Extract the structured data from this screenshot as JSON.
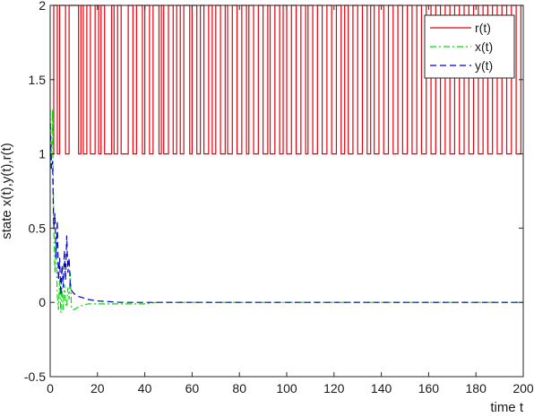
{
  "chart_data": {
    "type": "line",
    "xlabel": "time t",
    "ylabel": "state x(t),y(t),r(t)",
    "xlim": [
      0,
      200
    ],
    "ylim": [
      -0.5,
      2
    ],
    "x_ticks": [
      "0",
      "20",
      "40",
      "60",
      "80",
      "100",
      "120",
      "140",
      "160",
      "180",
      "200"
    ],
    "y_ticks": [
      "-0.5",
      "0",
      "0.5",
      "1",
      "1.5",
      "2"
    ],
    "legend_position": "top-right",
    "series": [
      {
        "name": "r(t)",
        "color": "#e8000b",
        "dash": "solid",
        "kind": "step",
        "x": [
          0,
          1.5,
          3,
          4,
          6.5,
          8,
          12,
          13,
          14,
          15.5,
          17,
          19,
          20.5,
          21.5,
          23,
          26,
          27,
          28.5,
          30,
          33,
          35,
          36.5,
          39,
          40,
          42,
          43.5,
          46,
          47,
          48,
          50,
          52,
          53.5,
          55,
          56.5,
          59,
          60,
          62,
          63.5,
          65,
          67,
          68.5,
          70,
          72,
          74,
          75,
          77,
          79,
          81,
          83,
          84,
          86,
          88,
          90,
          92,
          93,
          95,
          97,
          98.5,
          100,
          102,
          104,
          106,
          108,
          109,
          111,
          113,
          115,
          117,
          119,
          121,
          123,
          124.5,
          126,
          128,
          130,
          132,
          134,
          135.5,
          137,
          139,
          141,
          143,
          145,
          147,
          149,
          151,
          153,
          155,
          157,
          159,
          161,
          163,
          165,
          167,
          169,
          171,
          173,
          175,
          177,
          179,
          181,
          183,
          185,
          187,
          189,
          191,
          193,
          195,
          197,
          199,
          200
        ],
        "y": [
          1,
          2,
          1,
          2,
          1,
          2,
          1,
          2,
          1,
          2,
          1,
          2,
          1,
          2,
          1,
          2,
          1,
          2,
          1,
          2,
          1,
          2,
          1,
          2,
          1,
          2,
          1,
          2,
          1,
          2,
          1,
          2,
          1,
          2,
          1,
          2,
          1,
          2,
          1,
          2,
          1,
          2,
          1,
          2,
          1,
          2,
          1,
          2,
          1,
          2,
          1,
          2,
          1,
          2,
          1,
          2,
          1,
          2,
          1,
          2,
          1,
          2,
          1,
          2,
          1,
          2,
          1,
          2,
          1,
          2,
          1,
          2,
          1,
          2,
          1,
          2,
          1,
          2,
          1,
          2,
          1,
          2,
          1,
          2,
          1,
          2,
          1,
          2,
          1,
          2,
          1,
          2,
          1,
          2,
          1,
          2,
          1,
          2,
          1,
          2,
          1,
          2,
          1,
          2,
          1,
          2,
          1,
          2,
          1,
          2,
          2
        ]
      },
      {
        "name": "x(t)",
        "color": "#00e000",
        "dash": "dashdot",
        "kind": "line",
        "x": [
          0,
          0.5,
          1,
          1.5,
          2,
          2.5,
          3,
          3.5,
          4,
          4.5,
          5,
          5.5,
          6,
          6.5,
          7,
          7.5,
          8,
          8.5,
          9,
          10,
          12,
          14,
          16,
          20,
          30,
          40,
          45,
          60,
          80,
          100,
          140,
          200
        ],
        "y": [
          1.3,
          0.9,
          1.3,
          0.5,
          0.2,
          0.4,
          0.05,
          -0.05,
          0.15,
          -0.07,
          0.1,
          -0.05,
          0.12,
          0.0,
          -0.03,
          0.1,
          0.02,
          0.2,
          -0.04,
          -0.05,
          -0.03,
          -0.02,
          -0.01,
          -0.01,
          -0.01,
          -0.01,
          0.0,
          0.0,
          0.0,
          0.0,
          0.0,
          0.0
        ]
      },
      {
        "name": "y(t)",
        "color": "#0000cc",
        "dash": "dashed",
        "kind": "line",
        "x": [
          0,
          0.5,
          1,
          1.5,
          2,
          2.5,
          3,
          3.5,
          4,
          4.5,
          5,
          5.5,
          6,
          6.5,
          7,
          7.5,
          8,
          8.5,
          9,
          10,
          11,
          12,
          14,
          16,
          20,
          30,
          45,
          60,
          100,
          200
        ],
        "y": [
          1.2,
          0.9,
          0.95,
          0.5,
          0.6,
          0.3,
          0.55,
          0.15,
          0.3,
          0.05,
          0.25,
          0.1,
          0.35,
          0.15,
          0.45,
          0.2,
          0.3,
          0.12,
          0.08,
          0.06,
          0.05,
          0.04,
          0.03,
          0.02,
          0.01,
          0.0,
          0.0,
          0.0,
          0.0,
          0.0
        ]
      }
    ]
  }
}
